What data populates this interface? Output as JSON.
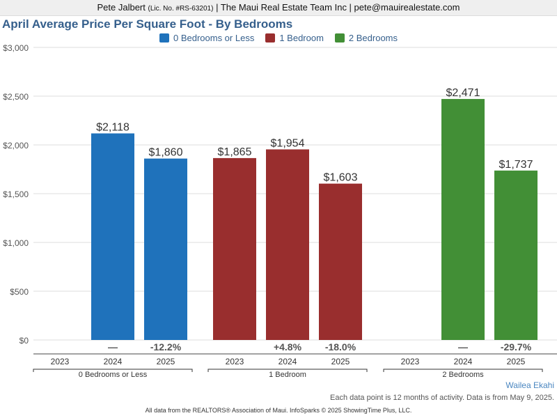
{
  "header": {
    "agent_name": "Pete Jalbert",
    "license": "(Lic. No. #RS-63201)",
    "rest": "| The Maui Real Estate Team Inc | pete@mauirealestate.com"
  },
  "chart_data": {
    "type": "bar",
    "title": "April Average Price Per Square Foot - By Bedrooms",
    "groups": [
      "0 Bedrooms or Less",
      "1 Bedroom",
      "2 Bedrooms"
    ],
    "years": [
      "2023",
      "2024",
      "2025"
    ],
    "series": [
      {
        "name": "0 Bedrooms or Less",
        "color": "#1f72bb",
        "values": [
          null,
          2118,
          1860
        ],
        "labels": [
          "",
          "$2,118",
          "$1,860"
        ],
        "changes": [
          "",
          "—",
          "-12.2%"
        ]
      },
      {
        "name": "1 Bedroom",
        "color": "#992e2e",
        "values": [
          1865,
          1954,
          1603
        ],
        "labels": [
          "$1,865",
          "$1,954",
          "$1,603"
        ],
        "changes": [
          "",
          "+4.8%",
          "-18.0%"
        ]
      },
      {
        "name": "2 Bedrooms",
        "color": "#428f36",
        "values": [
          null,
          2471,
          1737
        ],
        "labels": [
          "",
          "$2,471",
          "$1,737"
        ],
        "changes": [
          "",
          "—",
          "-29.7%"
        ]
      }
    ],
    "yticks": [
      0,
      500,
      1000,
      1500,
      2000,
      2500,
      3000
    ],
    "ytick_labels": [
      "$0",
      "$500",
      "$1,000",
      "$1,500",
      "$2,000",
      "$2,500",
      "$3,000"
    ],
    "ylim": [
      0,
      3000
    ],
    "legend_position": "top-center",
    "grid": true
  },
  "footer": {
    "area_name": "Wailea Ekahi",
    "note": "Each data point is 12 months of activity. Data is from May 9, 2025.",
    "source": "All data from the REALTORS® Association of Maui. InfoSparks © 2025 ShowingTime Plus, LLC."
  }
}
